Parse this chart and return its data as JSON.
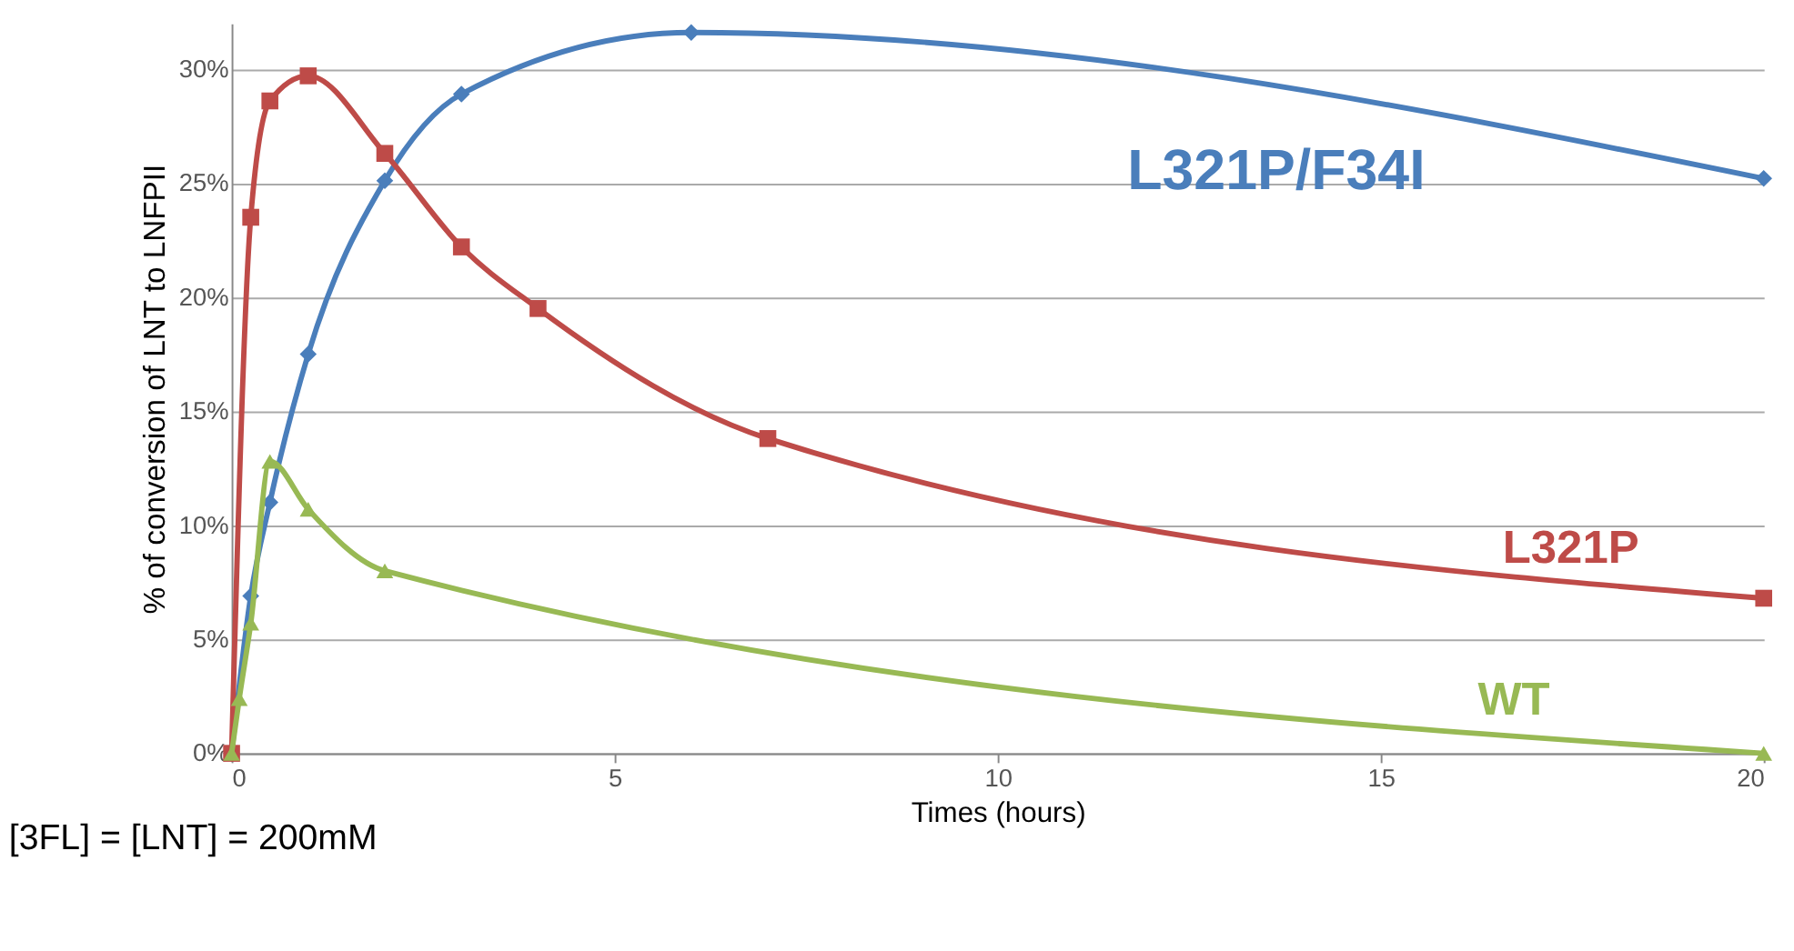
{
  "chart_data": {
    "type": "line",
    "xlabel": "Times (hours)",
    "ylabel": "% of conversion of LNT to LNFPII",
    "annotations": [
      "[3FL] = [LNT] = 200mM"
    ],
    "xlim": [
      0,
      20
    ],
    "xticks": [
      0,
      5,
      10,
      15,
      20
    ],
    "ylim": [
      0,
      32
    ],
    "yticks": [
      {
        "value": 0,
        "label": "0%"
      },
      {
        "value": 5,
        "label": "5%"
      },
      {
        "value": 10,
        "label": "10%"
      },
      {
        "value": 15,
        "label": "15%"
      },
      {
        "value": 20,
        "label": "20%"
      },
      {
        "value": 25,
        "label": "25%"
      },
      {
        "value": 30,
        "label": "30%"
      }
    ],
    "grid": "y",
    "line_style": "solid",
    "series": [
      {
        "name": "L321P/F34I",
        "color": "#4a7ebb",
        "marker": "diamond",
        "x": [
          0,
          0.25,
          0.5,
          1,
          2,
          3,
          6,
          20
        ],
        "values": [
          0,
          6.9,
          11,
          17.5,
          25.1,
          28.9,
          31.6,
          25.2
        ]
      },
      {
        "name": "L321P",
        "color": "#be4b48",
        "marker": "square",
        "x": [
          0,
          0.25,
          0.5,
          1,
          2,
          3,
          4,
          7,
          20
        ],
        "values": [
          0,
          23.5,
          28.6,
          29.7,
          26.3,
          22.2,
          19.5,
          13.8,
          6.8
        ]
      },
      {
        "name": "WT",
        "color": "#98b954",
        "marker": "triangle",
        "x": [
          0,
          0.1,
          0.25,
          0.5,
          1,
          2,
          20
        ],
        "values": [
          0,
          2.4,
          5.7,
          12.8,
          10.7,
          8.0,
          0
        ]
      }
    ]
  }
}
